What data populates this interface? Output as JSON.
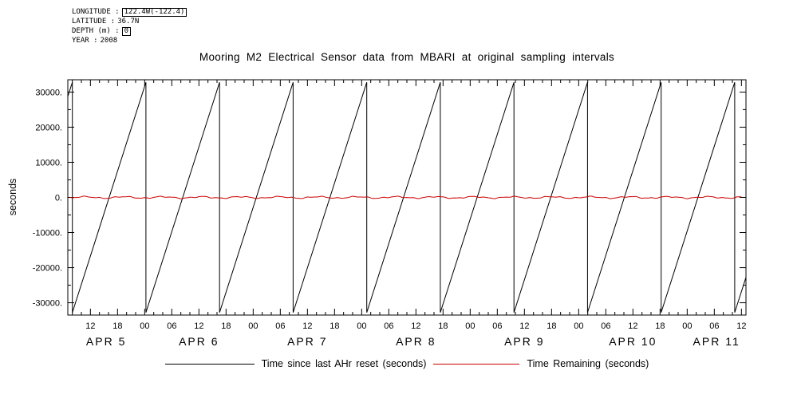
{
  "meta": {
    "lines": [
      {
        "label": "LONGITUDE :",
        "value": "122.4W(-122.4)"
      },
      {
        "label": "LATITUDE :",
        "value": "36.7N"
      },
      {
        "label": "DEPTH (m) :",
        "value": "0"
      },
      {
        "label": "YEAR :",
        "value": "2008"
      }
    ]
  },
  "chart_data": {
    "type": "line",
    "title": "Mooring M2 Electrical Sensor data from MBARI at original sampling intervals",
    "ylabel": "seconds",
    "x_axis": {
      "start_date": "2008-04-05",
      "range_hours": [
        7,
        157
      ],
      "hour_tick_start": 12,
      "major_tick_step_hours": 6,
      "minor_tick_step_hours": 2,
      "hour_tick_labels": [
        "12",
        "18",
        "00",
        "06",
        "12",
        "18",
        "00",
        "06",
        "12",
        "18",
        "00",
        "06",
        "12",
        "18",
        "00",
        "06",
        "12",
        "18",
        "00",
        "06",
        "12",
        "18",
        "00",
        "06",
        "12"
      ],
      "day_labels": [
        "APR 5",
        "APR 6",
        "APR 7",
        "APR 8",
        "APR 9",
        "APR 10",
        "APR 11"
      ],
      "day_spans_hours": [
        [
          7,
          24
        ],
        [
          24,
          48
        ],
        [
          48,
          72
        ],
        [
          72,
          96
        ],
        [
          96,
          120
        ],
        [
          120,
          144
        ],
        [
          144,
          157
        ]
      ]
    },
    "y_axis": {
      "lim": [
        -33500,
        33500
      ],
      "major_ticks": [
        30000,
        20000,
        10000,
        0,
        -10000,
        -20000,
        -30000
      ],
      "tick_labels": [
        "30000.",
        "20000.",
        "10000.",
        "0.",
        "-10000.",
        "-20000.",
        "-30000."
      ],
      "minor_tick_step": 5000
    },
    "series": [
      {
        "name": "Time since last AHr reset (seconds)",
        "color": "#000000",
        "shape": "sawtooth",
        "min": -32768,
        "max": 32768,
        "period_hours": 16.28,
        "first_reset_hour": 8.0
      },
      {
        "name": "Time Remaining (seconds)",
        "color": "#cc0000",
        "shape": "near-constant",
        "value": 0,
        "fluctuation": 400
      }
    ],
    "grid": false,
    "legend_position": "below"
  },
  "legend": {
    "items": [
      {
        "label": "Time since last AHr reset (seconds)",
        "color": "#000000"
      },
      {
        "label": "Time Remaining (seconds)",
        "color": "#cc0000"
      }
    ]
  }
}
